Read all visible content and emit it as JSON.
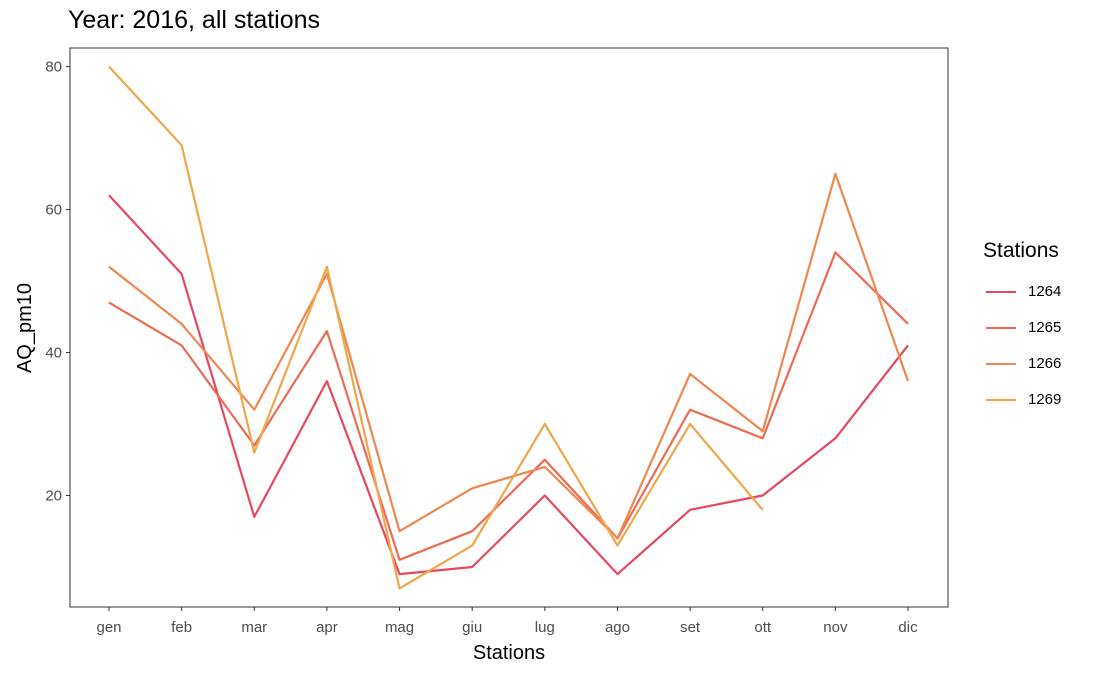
{
  "chart_data": {
    "type": "line",
    "title": "Year: 2016, all stations",
    "xlabel": "Stations",
    "ylabel": "AQ_pm10",
    "categories": [
      "gen",
      "feb",
      "mar",
      "apr",
      "mag",
      "giu",
      "lug",
      "ago",
      "set",
      "ott",
      "nov",
      "dic"
    ],
    "yticks": [
      20,
      40,
      60,
      80
    ],
    "ylim": [
      4.4,
      82.6
    ],
    "grid": false,
    "legend": {
      "title": "Stations",
      "position": "right"
    },
    "series": [
      {
        "name": "1264",
        "color": "#E8485F",
        "values": [
          62,
          51,
          17,
          36,
          9,
          10,
          20,
          9,
          18,
          20,
          28,
          41
        ]
      },
      {
        "name": "1265",
        "color": "#EE6A55",
        "values": [
          47,
          41,
          27,
          43,
          11,
          15,
          25,
          14,
          32,
          28,
          54,
          44
        ]
      },
      {
        "name": "1266",
        "color": "#F0874E",
        "values": [
          52,
          44,
          32,
          51,
          15,
          21,
          24,
          14,
          37,
          29,
          65,
          36
        ]
      },
      {
        "name": "1269",
        "color": "#F2A64C",
        "values": [
          80,
          69,
          26,
          52,
          7,
          13,
          30,
          13,
          30,
          18,
          null,
          null
        ]
      }
    ]
  }
}
